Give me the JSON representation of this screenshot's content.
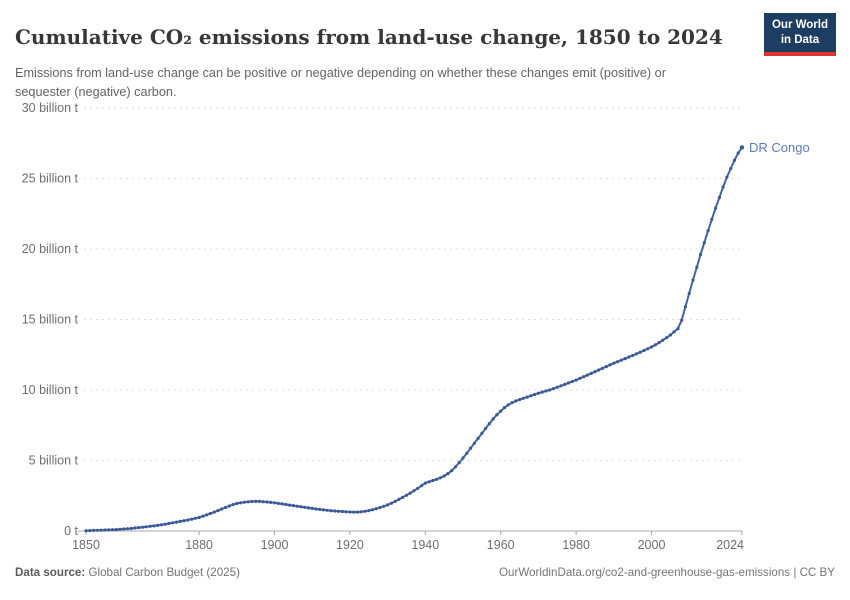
{
  "header": {
    "title": "Cumulative CO₂ emissions from land-use change, 1850 to 2024",
    "subtitle": "Emissions from land-use change can be positive or negative depending on whether these changes emit (positive) or sequester (negative) carbon.",
    "logo": {
      "line1": "Our World",
      "line2": "in Data",
      "bg_color": "#1d3d63",
      "accent_color": "#dc352c"
    }
  },
  "chart_data": {
    "type": "line",
    "title": "Cumulative CO₂ emissions from land-use change, 1850 to 2024",
    "unit": "billion t",
    "xlim": [
      1850,
      2024
    ],
    "ylim": [
      0,
      30
    ],
    "x_ticks": [
      1850,
      1880,
      1900,
      1920,
      1940,
      1960,
      1980,
      2000,
      2024
    ],
    "y_ticks": [
      0,
      5,
      10,
      15,
      20,
      25,
      30
    ],
    "y_tick_labels": [
      "0 t",
      "5 billion t",
      "10 billion t",
      "15 billion t",
      "20 billion t",
      "25 billion t",
      "30 billion t"
    ],
    "grid": "horizontal-dashed",
    "legend_position": "end-of-line-label",
    "series": [
      {
        "name": "DR Congo",
        "color": "#4464a1",
        "marker_color": "#3a5a96",
        "label_color": "#5b7db8",
        "x_start": 1850,
        "x_step": 1,
        "values": [
          0.02,
          0.03,
          0.04,
          0.05,
          0.06,
          0.07,
          0.08,
          0.09,
          0.1,
          0.12,
          0.14,
          0.16,
          0.18,
          0.21,
          0.24,
          0.27,
          0.3,
          0.33,
          0.36,
          0.4,
          0.44,
          0.48,
          0.53,
          0.58,
          0.63,
          0.68,
          0.73,
          0.78,
          0.84,
          0.9,
          0.96,
          1.05,
          1.14,
          1.24,
          1.34,
          1.45,
          1.56,
          1.67,
          1.77,
          1.87,
          1.95,
          2.0,
          2.04,
          2.07,
          2.09,
          2.1,
          2.1,
          2.08,
          2.06,
          2.03,
          2.0,
          1.96,
          1.92,
          1.88,
          1.84,
          1.8,
          1.76,
          1.72,
          1.68,
          1.64,
          1.6,
          1.56,
          1.53,
          1.5,
          1.47,
          1.44,
          1.42,
          1.4,
          1.38,
          1.36,
          1.35,
          1.34,
          1.34,
          1.36,
          1.4,
          1.45,
          1.51,
          1.58,
          1.66,
          1.75,
          1.85,
          1.97,
          2.1,
          2.24,
          2.38,
          2.53,
          2.69,
          2.86,
          3.03,
          3.21,
          3.4,
          3.49,
          3.58,
          3.67,
          3.77,
          3.9,
          4.07,
          4.28,
          4.55,
          4.85,
          5.18,
          5.52,
          5.87,
          6.22,
          6.57,
          6.92,
          7.27,
          7.62,
          7.95,
          8.25,
          8.5,
          8.75,
          8.95,
          9.1,
          9.22,
          9.32,
          9.41,
          9.5,
          9.59,
          9.68,
          9.77,
          9.85,
          9.93,
          10.0,
          10.1,
          10.2,
          10.3,
          10.4,
          10.5,
          10.6,
          10.7,
          10.82,
          10.94,
          11.06,
          11.18,
          11.3,
          11.42,
          11.54,
          11.66,
          11.78,
          11.9,
          12.01,
          12.12,
          12.23,
          12.34,
          12.45,
          12.56,
          12.68,
          12.8,
          12.92,
          13.05,
          13.2,
          13.36,
          13.53,
          13.71,
          13.9,
          14.12,
          14.35,
          14.95,
          15.9,
          16.85,
          17.8,
          18.7,
          19.6,
          20.45,
          21.3,
          22.1,
          22.9,
          23.65,
          24.4,
          25.1,
          25.7,
          26.3,
          26.8,
          27.2
        ]
      }
    ]
  },
  "footer": {
    "source_label": "Data source:",
    "source_value": "Global Carbon Budget (2025)",
    "link": "OurWorldinData.org/co2-and-greenhouse-gas-emissions",
    "separator": " | ",
    "license": "CC BY"
  }
}
